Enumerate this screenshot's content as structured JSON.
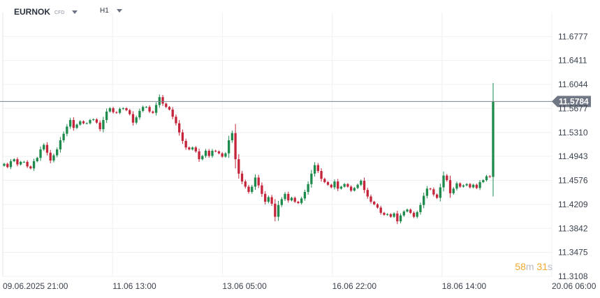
{
  "header": {
    "symbol": "EURNOK",
    "instrument_type": "CFD",
    "timeframe": "H1"
  },
  "countdown": {
    "minutes": "58",
    "minutes_unit": "m",
    "seconds": "31",
    "seconds_unit": "s"
  },
  "colors": {
    "up": "#1e8a4c",
    "down": "#c4253a",
    "grid": "#eef0f3",
    "price_line": "#7a8290",
    "price_badge": "#6f7784"
  },
  "chart_data": {
    "type": "candlestick",
    "symbol": "EURNOK",
    "timeframe": "H1",
    "ylim": [
      11.3108,
      11.7144
    ],
    "y_ticks": [
      "11.6777",
      "11.6411",
      "11.6044",
      "11.5677",
      "11.5310",
      "11.4943",
      "11.4576",
      "11.4209",
      "11.3842",
      "11.3475",
      "11.3108"
    ],
    "x_ticks": [
      "09.06.2025  21:00",
      "11.06  13:00",
      "13.06  05:00",
      "16.06  22:00",
      "18.06  14:00",
      "20.06  06:00"
    ],
    "current_price": 11.5784,
    "current_price_label": "11.5784",
    "closes": [
      11.483,
      11.478,
      11.487,
      11.49,
      11.482,
      11.486,
      11.486,
      11.479,
      11.476,
      11.487,
      11.492,
      11.505,
      11.512,
      11.5,
      11.488,
      11.496,
      11.505,
      11.519,
      11.529,
      11.54,
      11.55,
      11.538,
      11.543,
      11.548,
      11.545,
      11.545,
      11.55,
      11.551,
      11.546,
      11.536,
      11.55,
      11.563,
      11.568,
      11.562,
      11.561,
      11.567,
      11.568,
      11.565,
      11.559,
      11.546,
      11.554,
      11.564,
      11.57,
      11.57,
      11.563,
      11.561,
      11.573,
      11.585,
      11.575,
      11.57,
      11.566,
      11.555,
      11.545,
      11.531,
      11.518,
      11.508,
      11.505,
      11.508,
      11.502,
      11.49,
      11.495,
      11.503,
      11.495,
      11.503,
      11.502,
      11.499,
      11.494,
      11.499,
      11.519,
      11.53,
      11.49,
      11.468,
      11.456,
      11.448,
      11.44,
      11.448,
      11.462,
      11.45,
      11.437,
      11.425,
      11.432,
      11.422,
      11.402,
      11.42,
      11.429,
      11.437,
      11.427,
      11.431,
      11.425,
      11.423,
      11.43,
      11.44,
      11.452,
      11.468,
      11.481,
      11.472,
      11.46,
      11.455,
      11.451,
      11.447,
      11.456,
      11.445,
      11.448,
      11.452,
      11.448,
      11.442,
      11.446,
      11.451,
      11.457,
      11.443,
      11.433,
      11.425,
      11.421,
      11.416,
      11.408,
      11.405,
      11.406,
      11.402,
      11.407,
      11.395,
      11.404,
      11.41,
      11.413,
      11.408,
      11.402,
      11.409,
      11.42,
      11.434,
      11.445,
      11.444,
      11.436,
      11.431,
      11.447,
      11.465,
      11.458,
      11.438,
      11.445,
      11.453,
      11.448,
      11.45,
      11.452,
      11.447,
      11.451,
      11.446,
      11.455,
      11.458,
      11.464,
      11.463,
      11.578
    ]
  }
}
